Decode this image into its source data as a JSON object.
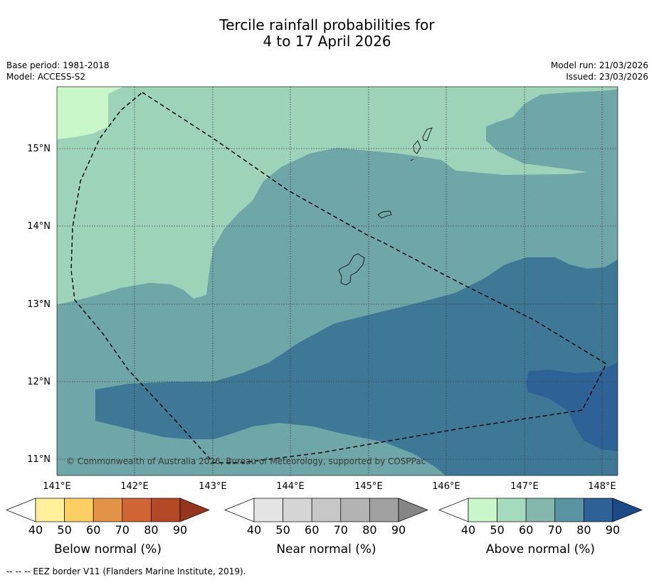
{
  "title": {
    "line1": "Tercile rainfall probabilities for",
    "line2": "4 to 17 April 2026"
  },
  "info_left": {
    "base_period": "Base period: 1981-2018",
    "model": "Model: ACCESS-S2"
  },
  "info_right": {
    "model_run": "Model run: 21/03/2026",
    "issued": "Issued: 23/03/2026"
  },
  "map": {
    "lon_ticks": [
      "141°E",
      "142°E",
      "143°E",
      "144°E",
      "145°E",
      "146°E",
      "147°E",
      "148°E"
    ],
    "lat_ticks": [
      "15°N",
      "14°N",
      "13°N",
      "12°N",
      "11°N"
    ],
    "copyright": "© Commonwealth of Australia 2026, Bureau of Meteorology, supported by COSPPac",
    "category_colors": {
      "above_40_50": "#c9f7c9",
      "above_50_60": "#9dd3b9",
      "above_60_70": "#6fa6a8",
      "above_70_80": "#3f7896",
      "above_80_90": "#2e6195"
    }
  },
  "colorbars": [
    {
      "label": "Below normal (%)",
      "ticks": [
        "40",
        "50",
        "60",
        "70",
        "80",
        "90"
      ],
      "colors": [
        "#ffffff",
        "#fff09b",
        "#fdce62",
        "#e39449",
        "#cf6434",
        "#b34a27",
        "#93361d"
      ]
    },
    {
      "label": "Near normal (%)",
      "ticks": [
        "40",
        "50",
        "60",
        "70",
        "80",
        "90"
      ],
      "colors": [
        "#ffffff",
        "#e4e4e4",
        "#d6d6d6",
        "#c7c7c7",
        "#b3b3b3",
        "#a1a1a1",
        "#858585"
      ]
    },
    {
      "label": "Above normal (%)",
      "ticks": [
        "40",
        "50",
        "60",
        "70",
        "80",
        "90"
      ],
      "colors": [
        "#ffffff",
        "#c9f7c9",
        "#a4dabd",
        "#84b8ac",
        "#5a94a2",
        "#2e6195",
        "#1b4a86"
      ]
    }
  ],
  "footer": "--  --  -- EEZ border V11 (Flanders Marine Institute, 2019)."
}
